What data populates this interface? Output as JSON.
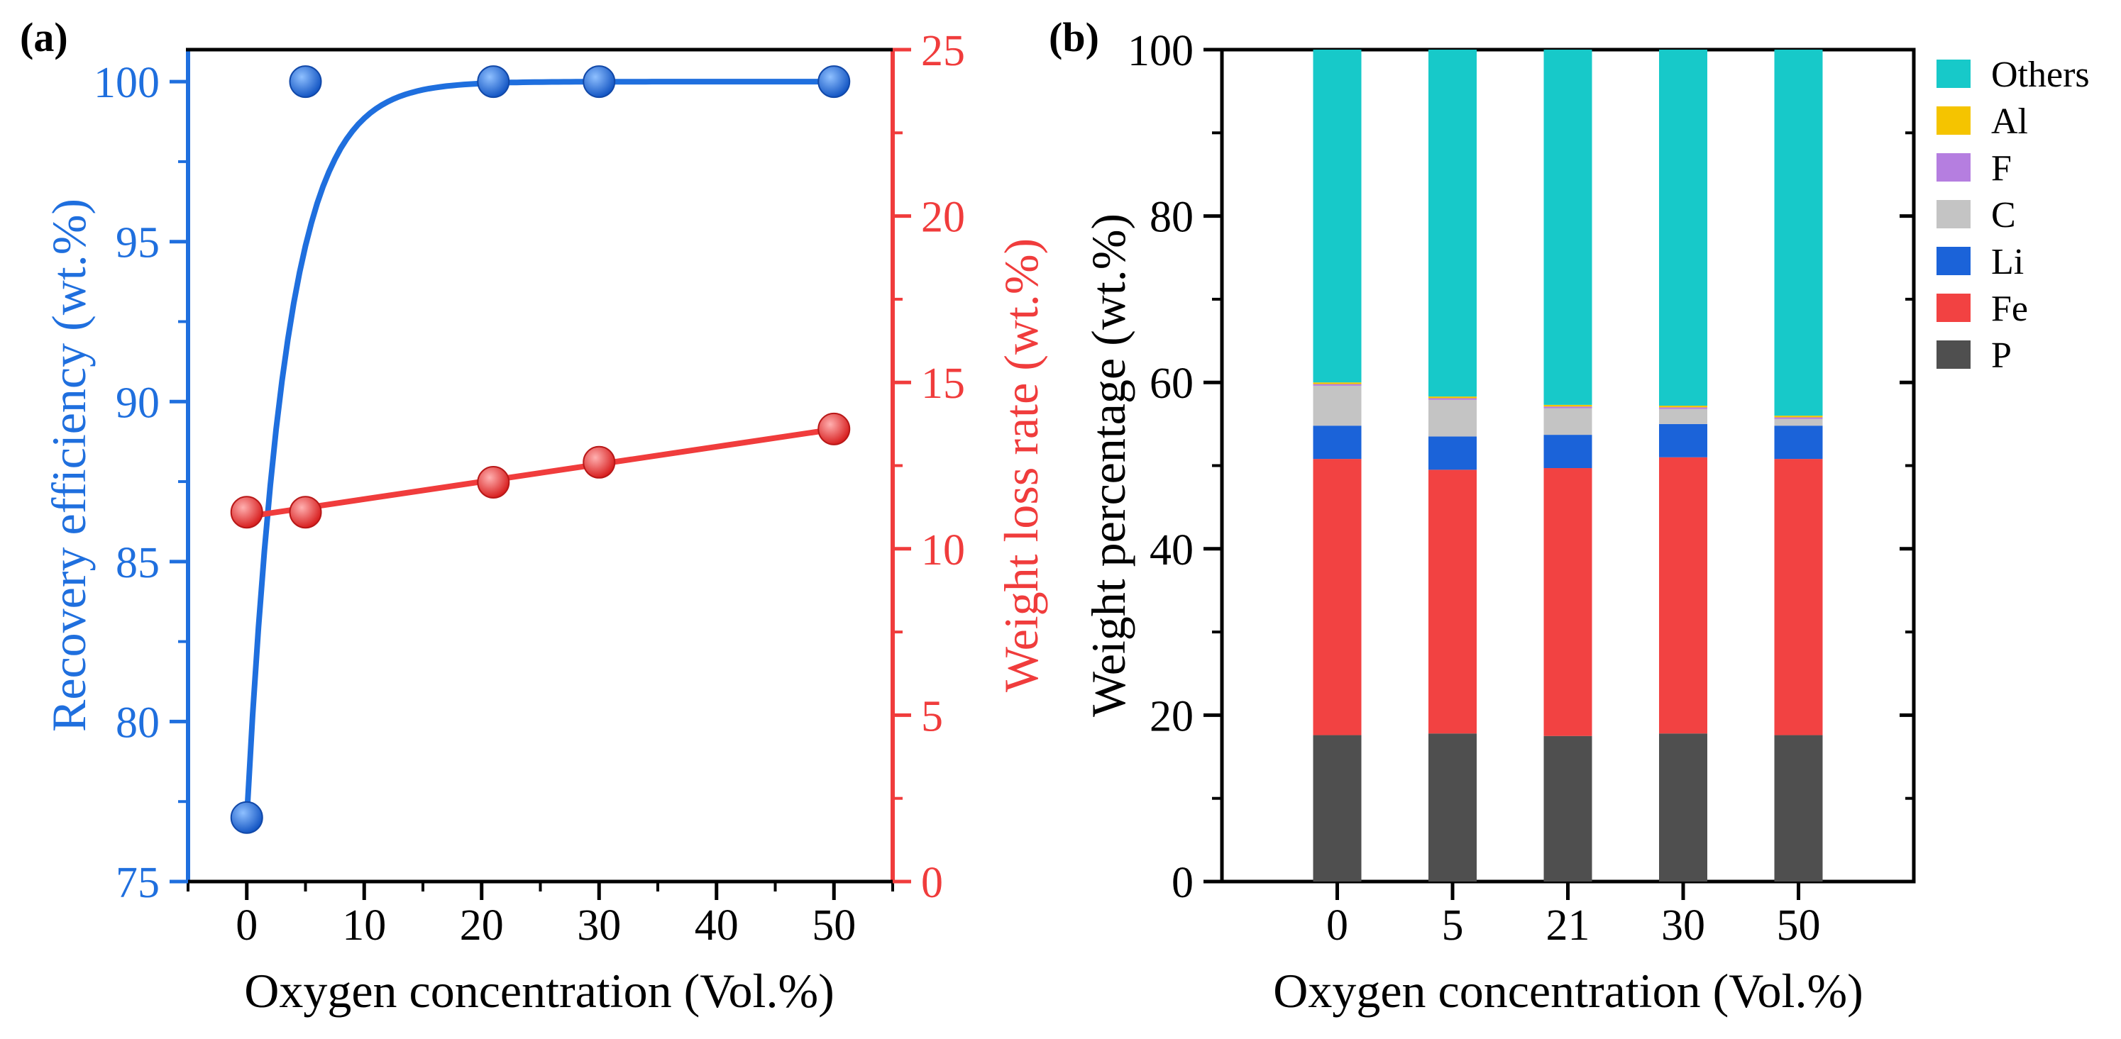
{
  "panel_a": {
    "label": "(a)",
    "xlabel": "Oxygen concentration (Vol.%)",
    "ylabel_left": "Recovery efficiency (wt.%)",
    "ylabel_right": "Weight loss rate (wt.%)",
    "x_ticks": [
      "0",
      "10",
      "20",
      "30",
      "40",
      "50"
    ],
    "y_left_ticks": [
      "75",
      "80",
      "85",
      "90",
      "95",
      "100"
    ],
    "y_right_ticks": [
      "0",
      "5",
      "10",
      "15",
      "20",
      "25"
    ]
  },
  "panel_b": {
    "label": "(b)",
    "xlabel": "Oxygen concentration (Vol.%)",
    "ylabel": "Weight percentage (wt.%)",
    "categories": [
      "0",
      "5",
      "21",
      "30",
      "50"
    ],
    "y_ticks": [
      "0",
      "20",
      "40",
      "60",
      "80",
      "100"
    ],
    "legend": [
      "Others",
      "Al",
      "F",
      "C",
      "Li",
      "Fe",
      "P"
    ]
  },
  "colors": {
    "blue": "#1f6fde",
    "red": "#f03c3c",
    "others": "#17c9c9",
    "al": "#f5c400",
    "f": "#b57ee0",
    "c": "#c4c4c4",
    "li": "#1b63d9",
    "fe": "#f24242",
    "p": "#4f4f4f"
  },
  "chart_data": [
    {
      "type": "scatter",
      "title": "(a)",
      "xlabel": "Oxygen concentration (Vol.%)",
      "xlim": [
        -5,
        55
      ],
      "series": [
        {
          "name": "Recovery efficiency (wt.%)",
          "axis": "left",
          "ylim": [
            75,
            101
          ],
          "x": [
            0,
            5,
            21,
            30,
            50
          ],
          "values": [
            77,
            100,
            100,
            100,
            100
          ],
          "fit": "exponential",
          "fit_params": {
            "asymptote": 100,
            "amplitude": 23,
            "rate": 0.3
          }
        },
        {
          "name": "Weight loss rate (wt.%)",
          "axis": "right",
          "ylim": [
            0,
            25
          ],
          "x": [
            0,
            5,
            21,
            30,
            50
          ],
          "values": [
            11.1,
            11.1,
            12.0,
            12.6,
            13.6
          ],
          "fit": "linear"
        }
      ]
    },
    {
      "type": "bar",
      "stacked": true,
      "title": "(b)",
      "xlabel": "Oxygen concentration (Vol.%)",
      "ylabel": "Weight percentage (wt.%)",
      "ylim": [
        0,
        100
      ],
      "categories": [
        "0",
        "5",
        "21",
        "30",
        "50"
      ],
      "series": [
        {
          "name": "P",
          "values": [
            17.6,
            17.8,
            17.5,
            17.8,
            17.6
          ]
        },
        {
          "name": "Fe",
          "values": [
            33.2,
            31.7,
            32.2,
            33.2,
            33.2
          ]
        },
        {
          "name": "Li",
          "values": [
            4.0,
            4.0,
            4.0,
            4.0,
            4.0
          ]
        },
        {
          "name": "C",
          "values": [
            4.8,
            4.4,
            3.2,
            1.8,
            0.8
          ]
        },
        {
          "name": "F",
          "values": [
            0.2,
            0.2,
            0.2,
            0.2,
            0.2
          ]
        },
        {
          "name": "Al",
          "values": [
            0.2,
            0.2,
            0.2,
            0.2,
            0.2
          ]
        },
        {
          "name": "Others",
          "values": [
            40.0,
            41.7,
            42.7,
            42.8,
            44.0
          ]
        }
      ]
    }
  ]
}
